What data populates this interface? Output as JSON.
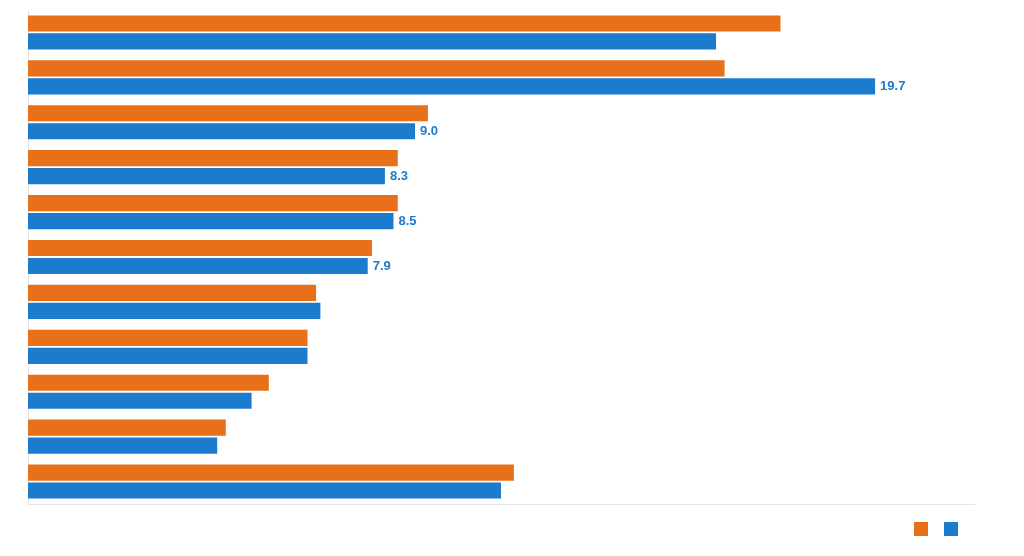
{
  "chart_data": {
    "type": "bar",
    "orientation": "horizontal",
    "categories": [
      null,
      null,
      null,
      null,
      null,
      null,
      null,
      null,
      null,
      null,
      null
    ],
    "series": [
      {
        "color": "#E8701A",
        "values": [
          17.5,
          16.2,
          9.3,
          8.6,
          8.6,
          8.0,
          6.7,
          6.5,
          5.6,
          4.6,
          11.3
        ]
      },
      {
        "color": "#1B7BCD",
        "values": [
          16.0,
          19.7,
          9.0,
          8.3,
          8.5,
          7.9,
          6.8,
          6.5,
          5.2,
          4.4,
          11.0
        ],
        "value_labels": [
          null,
          "19.7",
          "9.0",
          "8.3",
          "8.5",
          "7.9",
          null,
          null,
          null,
          null,
          null
        ]
      }
    ],
    "xlim": [
      0,
      22
    ],
    "xticks": [],
    "grid": false,
    "tick_labels": false,
    "legend": "bottom-right"
  }
}
